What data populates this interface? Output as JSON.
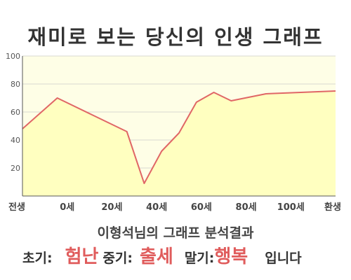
{
  "title": "재미로 보는 당신의 인생 그래프",
  "summary": "이형석님의 그래프 분석결과",
  "result": {
    "early_label": "초기:",
    "early_value": "험난",
    "mid_label": "중기:",
    "mid_value": "출세",
    "late_label": "말기:",
    "late_value": "행복",
    "suffix": "입니다"
  },
  "colors": {
    "line": "#e06666",
    "fill": "#ffffc0",
    "plot_bg": "#fefee6",
    "accent": "#e05c5c"
  },
  "chart_data": {
    "type": "area",
    "x": [
      -10,
      0,
      10,
      20,
      25,
      30,
      35,
      40,
      45,
      50,
      60,
      70,
      80
    ],
    "values": [
      48,
      70,
      58,
      46,
      9,
      32,
      45,
      67,
      74,
      68,
      73,
      74,
      75
    ],
    "xlim": [
      -10,
      80
    ],
    "ylim": [
      0,
      100
    ],
    "yticks": [
      20,
      40,
      60,
      80,
      100
    ],
    "xtick_labels": [
      "전생",
      "0세",
      "20세",
      "40세",
      "60세",
      "80세",
      "100세",
      "환생"
    ],
    "grid": true
  }
}
